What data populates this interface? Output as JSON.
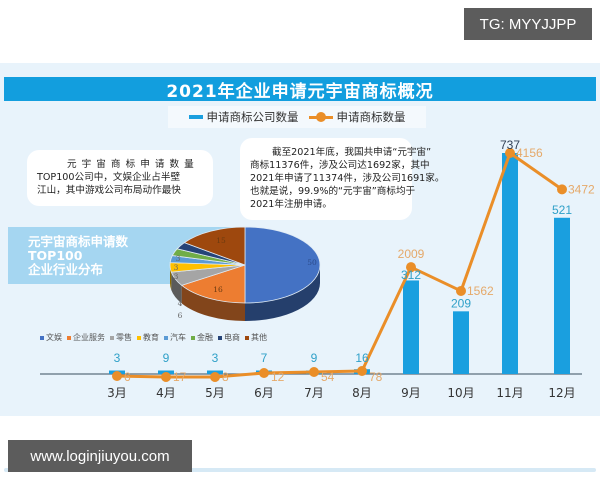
{
  "watermarks": {
    "top_right": "TG: MYYJJPP",
    "bottom_left": "www.loginjiuyou.com"
  },
  "header": {
    "title": "2021年企业申请元宇宙商标概况"
  },
  "legend": {
    "bar_label": "申请商标公司数量",
    "line_label": "申请商标数量"
  },
  "notes": {
    "left": [
      "元 宇 宙 商 标 申 请 数 量",
      "TOP100公司中，文娱企业占半壁",
      "江山，其中游戏公司布局动作最快"
    ],
    "right": [
      "截至2021年底，我国共申请“元宇宙”",
      "商标11376件，涉及公司达1692家，其中",
      "2021年申请了11374件，涉及公司1691家。",
      "也就是说，99.9%的“元宇宙”商标均于",
      "2021年注册申请。"
    ]
  },
  "pie_title": [
    "元宇宙商标申请数",
    "TOP100",
    "企业行业分布"
  ],
  "colors": {
    "title_bar": "#129ede",
    "bar": "#1a9fdf",
    "line": "#ea8e28",
    "panel_bg": "#e8f3fb"
  },
  "chart_data": [
    {
      "type": "bar+line",
      "title": "2021年企业申请元宇宙商标概况",
      "categories": [
        "3月",
        "4月",
        "5月",
        "6月",
        "7月",
        "8月",
        "9月",
        "10月",
        "11月",
        "12月"
      ],
      "series": [
        {
          "name": "申请商标公司数量",
          "type": "bar",
          "values": [
            3,
            9,
            3,
            7,
            9,
            16,
            312,
            209,
            737,
            521
          ]
        },
        {
          "name": "申请商标数量",
          "type": "line",
          "values": [
            6,
            17,
            8,
            12,
            54,
            78,
            2009,
            1562,
            4156,
            3472
          ]
        }
      ],
      "xlabel": "",
      "ylabel": "",
      "legend_position": "top",
      "grid": false
    },
    {
      "type": "pie",
      "title": "元宇宙商标申请数TOP100企业行业分布",
      "categories": [
        "文娱",
        "企业服务",
        "零售",
        "教育",
        "汽车",
        "金融",
        "电商",
        "其他"
      ],
      "values": [
        50,
        16,
        6,
        4,
        3,
        3,
        3,
        15
      ],
      "colors": [
        "#4472c4",
        "#ed7d31",
        "#a5a5a5",
        "#ffc000",
        "#5b9bd5",
        "#70ad47",
        "#264478",
        "#9e480e"
      ],
      "legend_position": "bottom"
    }
  ]
}
